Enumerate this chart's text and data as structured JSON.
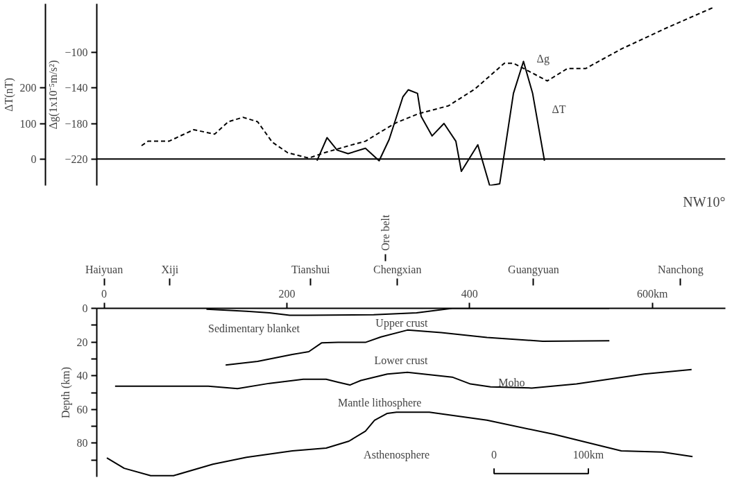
{
  "chart_data": [
    {
      "type": "line",
      "ylabel": "Δg(1x10⁻⁵m/s²)",
      "y2label": "ΔT(nT)",
      "xlim": [
        -8,
        680
      ],
      "ylim": [
        -250,
        -45
      ],
      "yticks": [
        -100,
        -140,
        -180,
        -220
      ],
      "y2lim": [
        -75,
        437.5
      ],
      "y2ticks": [
        0,
        100,
        200
      ],
      "tick_labels": "y",
      "grid": false,
      "ref_lines": [
        {
          "axis": "y",
          "value": -220
        }
      ],
      "annotations": [
        "Δg",
        "ΔT"
      ],
      "series": [
        {
          "color": "#000000",
          "line_style": "dashed",
          "x": [
            41,
            48,
            71,
            98,
            121,
            136,
            152,
            168,
            184,
            201,
            224,
            241,
            268,
            286,
            305,
            320,
            344,
            377,
            406,
            438,
            448,
            463,
            485,
            507,
            527,
            566,
            616,
            667
          ],
          "values": [
            -205,
            -200,
            -200,
            -187,
            -192,
            -178,
            -173,
            -178,
            -201,
            -213,
            -219,
            -213,
            -205,
            -200,
            -188,
            -179,
            -169,
            -160,
            -141,
            -112,
            -112,
            -120,
            -132,
            -118,
            -118,
            -96,
            -72,
            -49
          ]
        },
        {
          "color": "#000000",
          "line_style": "solid",
          "axis": "y2",
          "x": [
            233,
            244,
            255,
            267,
            286,
            301,
            312,
            327,
            333,
            343,
            347,
            359,
            372,
            385,
            391,
            409,
            422,
            433,
            448,
            459,
            469,
            482
          ],
          "values": [
            -5,
            60,
            25,
            15,
            30,
            -5,
            55,
            175,
            195,
            185,
            120,
            65,
            100,
            50,
            -35,
            40,
            -75,
            -70,
            185,
            275,
            185,
            -5
          ]
        }
      ]
    },
    {
      "type": "line",
      "ylabel": "Depth (km)",
      "xlim": [
        -8,
        680
      ],
      "ylim": [
        100,
        0
      ],
      "xticks": [
        0,
        200,
        400,
        {
          "value": 600,
          "label": "600km"
        }
      ],
      "yticks": [
        0,
        {
          "value": 10,
          "label": null
        },
        20,
        {
          "value": 30,
          "label": null
        },
        40,
        {
          "value": 50,
          "label": null
        },
        60,
        {
          "value": 70,
          "label": null
        },
        80,
        {
          "value": 90,
          "label": null
        }
      ],
      "ref_lines": [
        {
          "axis": "x",
          "value": 0,
          "label": "Haiyuan"
        },
        {
          "axis": "x",
          "value": 72,
          "label": "Xiji"
        },
        {
          "axis": "x",
          "value": 226,
          "label": "Tianshui"
        },
        {
          "axis": "x",
          "value": 308,
          "label": "Ore belt"
        },
        {
          "axis": "x",
          "value": 321,
          "label": "Chengxian"
        },
        {
          "axis": "x",
          "value": 470,
          "label": "Guangyuan"
        },
        {
          "axis": "x",
          "value": 631,
          "label": "Nanchong"
        }
      ],
      "grid": false,
      "annotations": [
        "NW10°",
        "Sedimentary blanket",
        "Upper crust",
        "Lower crust",
        "Moho",
        "Mantle lithosphere",
        "Asthenosphere",
        "0",
        "100km"
      ],
      "series": [
        {
          "color": "#000000",
          "line_style": "solid",
          "x": [
            112,
            156,
            181,
            203,
            223,
            295,
            342,
            381,
            553
          ],
          "values": [
            0.5,
            1.7,
            2.7,
            4.1,
            4.1,
            3.8,
            2.7,
            0,
            0
          ]
        },
        {
          "color": "#000000",
          "line_style": "solid",
          "x": [
            133,
            168,
            206,
            224,
            238,
            256,
            286,
            303,
            332,
            369,
            419,
            480,
            553
          ],
          "values": [
            33.6,
            31.5,
            27.4,
            25.7,
            20.5,
            20.2,
            20.2,
            17,
            12.9,
            14.4,
            17.3,
            19.5,
            19.2
          ]
        },
        {
          "color": "#000000",
          "line_style": "solid",
          "x": [
            12,
            114,
            146,
            181,
            218,
            243,
            256,
            269,
            281,
            310,
            332,
            381,
            401,
            423,
            468,
            517,
            591,
            643
          ],
          "values": [
            46.2,
            46.2,
            47.6,
            44.5,
            42.1,
            42.1,
            43.8,
            45.5,
            42.8,
            39,
            38,
            40.8,
            44.9,
            46.6,
            47.3,
            44.9,
            39,
            36.3
          ]
        },
        {
          "color": "#000000",
          "line_style": "solid",
          "x": [
            3,
            22,
            51,
            76,
            119,
            156,
            206,
            243,
            268,
            286,
            296,
            310,
            320,
            356,
            419,
            492,
            566,
            611,
            644
          ],
          "values": [
            88.7,
            94.9,
            99.3,
            99.3,
            92.5,
            88.4,
            84.6,
            82.9,
            78.8,
            72.9,
            66.4,
            62.3,
            61.6,
            61.6,
            66.4,
            74.7,
            84.6,
            85.3,
            88
          ]
        }
      ]
    }
  ]
}
